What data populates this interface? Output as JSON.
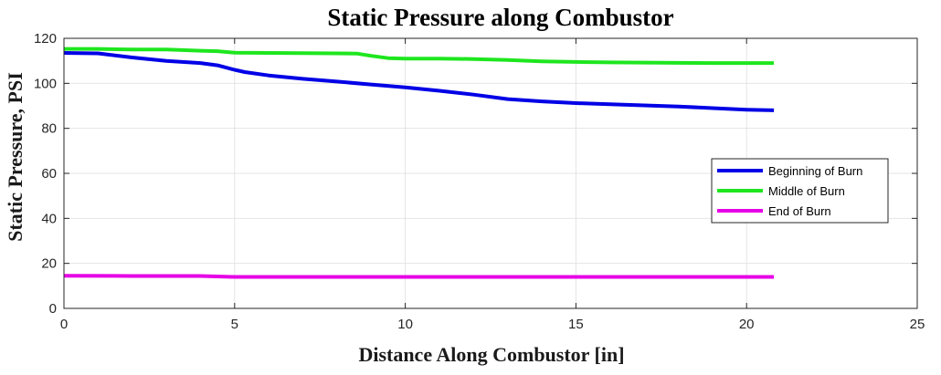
{
  "chart_data": {
    "type": "line",
    "title": "Static Pressure along Combustor",
    "xlabel": "Distance Along Combustor [in]",
    "ylabel": "Static Pressure, PSI",
    "xlim": [
      0,
      25
    ],
    "ylim": [
      0,
      120
    ],
    "xticks": [
      0,
      5,
      10,
      15,
      20,
      25
    ],
    "yticks": [
      0,
      20,
      40,
      60,
      80,
      100,
      120
    ],
    "grid": true,
    "legend_position": "right",
    "series": [
      {
        "name": "Beginning of Burn",
        "color": "#0000e6",
        "x": [
          0,
          1,
          2,
          3,
          4,
          4.5,
          5,
          5.3,
          6,
          7,
          8,
          9,
          10,
          11,
          12,
          13,
          14,
          15,
          16,
          17,
          18,
          19,
          20,
          20.8
        ],
        "y": [
          113.5,
          113.3,
          111.5,
          110,
          109,
          108,
          106,
          105,
          103.5,
          102,
          100.8,
          99.5,
          98.2,
          96.7,
          95,
          93,
          92,
          91.2,
          90.7,
          90.2,
          89.7,
          89,
          88.3,
          88
        ]
      },
      {
        "name": "Middle of Burn",
        "color": "#1ee61e",
        "x": [
          0,
          1,
          2,
          3,
          4,
          4.5,
          5,
          6,
          7,
          8,
          8.6,
          9,
          9.5,
          10,
          11,
          12,
          13,
          14,
          15,
          16,
          17,
          18,
          19,
          20,
          20.8
        ],
        "y": [
          115.3,
          115.3,
          115,
          115,
          114.5,
          114.3,
          113.6,
          113.5,
          113.4,
          113.3,
          113.2,
          112.2,
          111.2,
          111,
          111,
          110.8,
          110.4,
          109.8,
          109.5,
          109.3,
          109.2,
          109.1,
          109,
          109,
          109
        ]
      },
      {
        "name": "End of Burn",
        "color": "#e600e6",
        "x": [
          0,
          2,
          4,
          4.5,
          5,
          10,
          15,
          20,
          20.8
        ],
        "y": [
          14.5,
          14.4,
          14.4,
          14.2,
          14,
          14,
          14,
          14,
          14
        ]
      }
    ]
  }
}
